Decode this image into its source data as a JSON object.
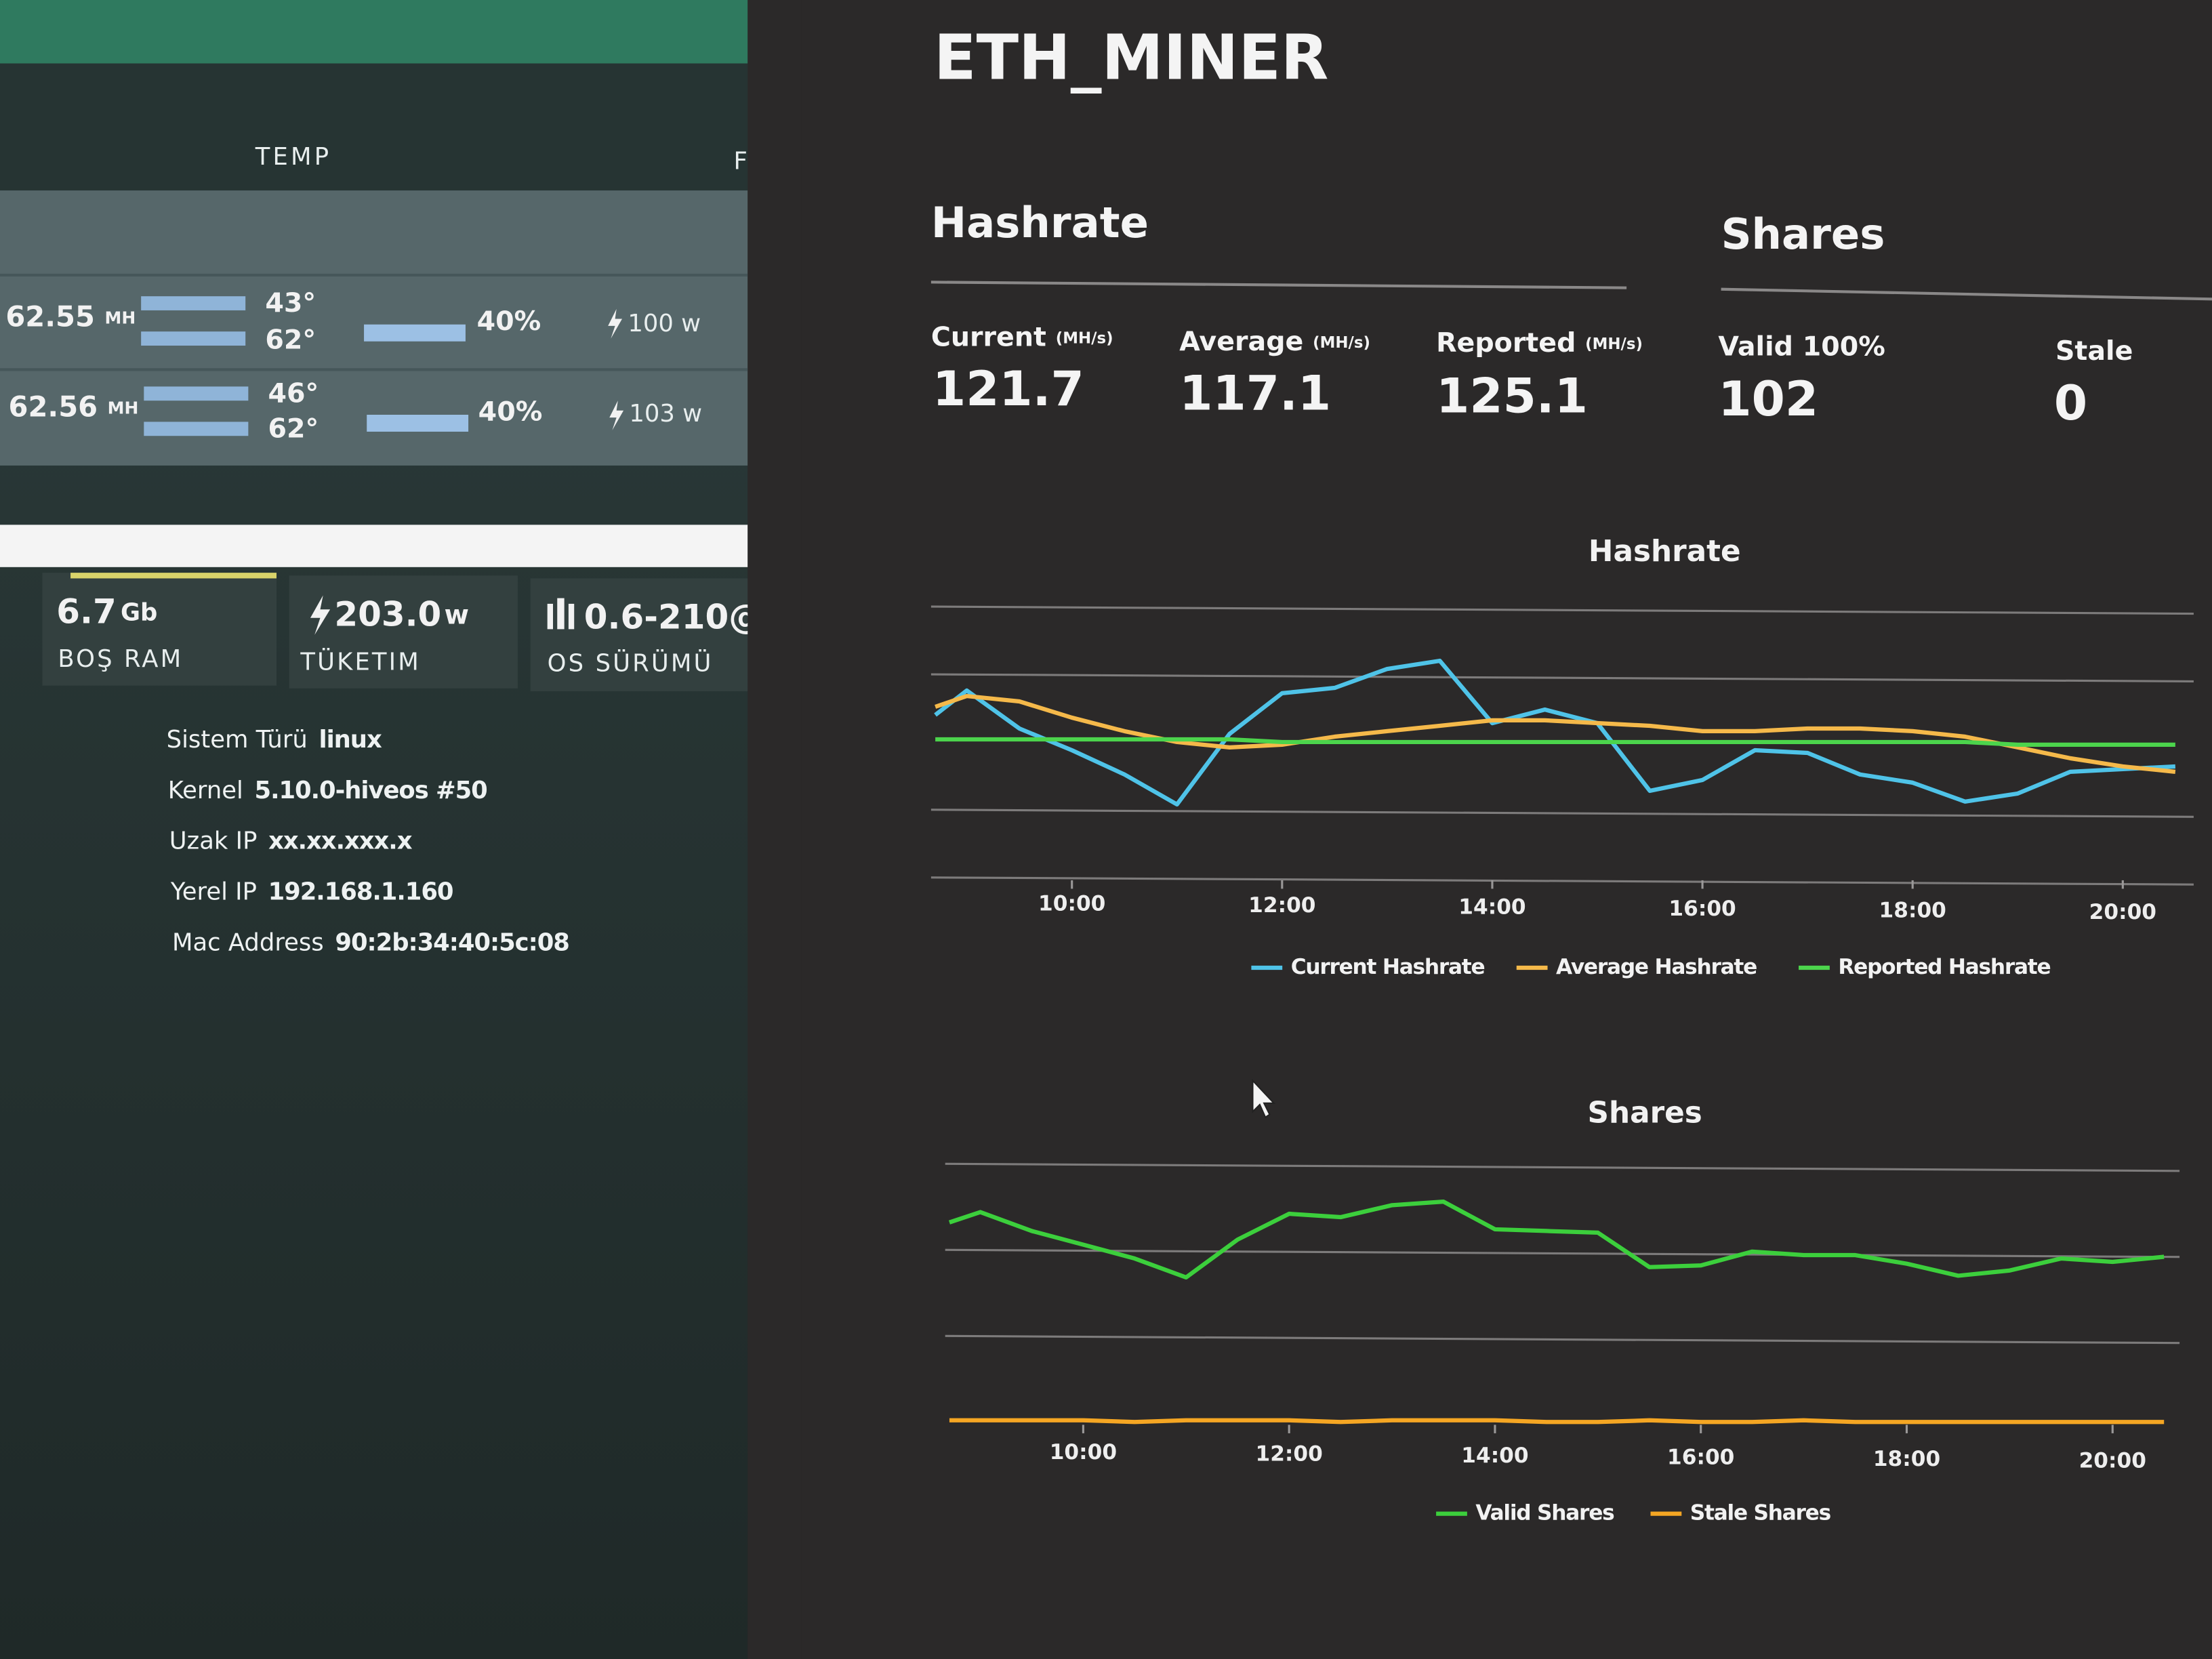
{
  "left_panel": {
    "temp_header": "TEMP",
    "next_header": "F",
    "gpus": [
      {
        "hashrate": "62.55",
        "unit": "MH",
        "temp_core": "43°",
        "temp_mem": "62°",
        "fan": "40%",
        "power": "100 w"
      },
      {
        "hashrate": "62.56",
        "unit": "MH",
        "temp_core": "46°",
        "temp_mem": "62°",
        "fan": "40%",
        "power": "103 w"
      }
    ],
    "stats": [
      {
        "value": "6.7",
        "unit": "Gb",
        "label": "BOŞ RAM"
      },
      {
        "value": "203.0",
        "unit": "w",
        "label": "TÜKETIM"
      },
      {
        "value": "0.6-210@",
        "label": "OS SÜRÜMÜ"
      }
    ],
    "info": [
      {
        "key": "Sistem Türü",
        "value": "linux"
      },
      {
        "key": "Kernel",
        "value": "5.10.0-hiveos #50"
      },
      {
        "key": "Uzak IP",
        "value": "xx.xx.xxx.x"
      },
      {
        "key": "Yerel IP",
        "value": "192.168.1.160"
      },
      {
        "key": "Mac Address",
        "value": "90:2b:34:40:5c:08"
      }
    ]
  },
  "worker": {
    "name": "ETH_MINER"
  },
  "hashrate": {
    "title": "Hashrate",
    "stats": [
      {
        "label": "Current",
        "unit": "(MH/s)",
        "value": "121.7"
      },
      {
        "label": "Average",
        "unit": "(MH/s)",
        "value": "117.1"
      },
      {
        "label": "Reported",
        "unit": "(MH/s)",
        "value": "125.1"
      }
    ]
  },
  "shares": {
    "title": "Shares",
    "stats": [
      {
        "label": "Valid 100%",
        "value": "102"
      },
      {
        "label": "Stale",
        "value": "0"
      }
    ]
  },
  "chart_data": [
    {
      "type": "line",
      "title": "Hashrate",
      "x": [
        8.7,
        9.0,
        9.5,
        10.0,
        10.5,
        11.0,
        11.5,
        12.0,
        12.5,
        13.0,
        13.5,
        14.0,
        14.5,
        15.0,
        15.5,
        16.0,
        16.5,
        17.0,
        17.5,
        18.0,
        18.5,
        19.0,
        19.5,
        20.0,
        20.5
      ],
      "xlim": [
        8.7,
        20.5
      ],
      "xticks": [
        {
          "value": 10,
          "label": "10:00"
        },
        {
          "value": 12,
          "label": "12:00"
        },
        {
          "value": 14,
          "label": "14:00"
        },
        {
          "value": 16,
          "label": "16:00"
        },
        {
          "value": 18,
          "label": "18:00"
        },
        {
          "value": 20,
          "label": "20:00"
        }
      ],
      "ylim": [
        75,
        175
      ],
      "yticks": [
        75,
        100,
        150,
        175
      ],
      "grid": true,
      "series": [
        {
          "name": "Current Hashrate",
          "color": "#4fc3e8",
          "values": [
            135,
            144,
            130,
            122,
            113,
            102,
            128,
            143,
            145,
            152,
            155,
            132,
            137,
            132,
            107,
            111,
            122,
            121,
            113,
            110,
            103,
            106,
            114,
            115,
            116
          ]
        },
        {
          "name": "Average Hashrate",
          "color": "#f5b94a",
          "values": [
            138,
            142,
            140,
            134,
            129,
            125,
            123,
            124,
            127,
            129,
            131,
            133,
            133,
            132,
            131,
            129,
            129,
            130,
            130,
            129,
            127,
            123,
            119,
            116,
            114
          ]
        },
        {
          "name": "Reported Hashrate",
          "color": "#4cd44c",
          "values": [
            126,
            126,
            126,
            126,
            126,
            126,
            126,
            125,
            125,
            125,
            125,
            125,
            125,
            125,
            125,
            125,
            125,
            125,
            125,
            125,
            125,
            124,
            124,
            124,
            124
          ]
        }
      ]
    },
    {
      "type": "line",
      "title": "Shares",
      "x": [
        8.7,
        9.0,
        9.5,
        10.0,
        10.5,
        11.0,
        11.5,
        12.0,
        12.5,
        13.0,
        13.5,
        14.0,
        14.5,
        15.0,
        15.5,
        16.0,
        16.5,
        17.0,
        17.5,
        18.0,
        18.5,
        19.0,
        19.5,
        20.0,
        20.5
      ],
      "xlim": [
        8.7,
        20.5
      ],
      "xticks": [
        {
          "value": 10,
          "label": "10:00"
        },
        {
          "value": 12,
          "label": "12:00"
        },
        {
          "value": 14,
          "label": "14:00"
        },
        {
          "value": 16,
          "label": "16:00"
        },
        {
          "value": 18,
          "label": "18:00"
        },
        {
          "value": 20,
          "label": "20:00"
        }
      ],
      "ylim": [
        0,
        150
      ],
      "yticks": [
        50,
        100,
        150
      ],
      "grid": true,
      "series": [
        {
          "name": "Valid Shares",
          "color": "#3ccf3c",
          "values": [
            116,
            122,
            111,
            103,
            95,
            84,
            106,
            121,
            119,
            126,
            128,
            112,
            111,
            110,
            90,
            91,
            99,
            97,
            97,
            92,
            85,
            88,
            95,
            93,
            96
          ]
        },
        {
          "name": "Stale Shares",
          "color": "#f5a623",
          "values": [
            1,
            1,
            1,
            1,
            0,
            1,
            1,
            1,
            0,
            1,
            1,
            1,
            0,
            0,
            1,
            0,
            0,
            1,
            0,
            0,
            0,
            0,
            0,
            0,
            0
          ]
        }
      ]
    }
  ]
}
